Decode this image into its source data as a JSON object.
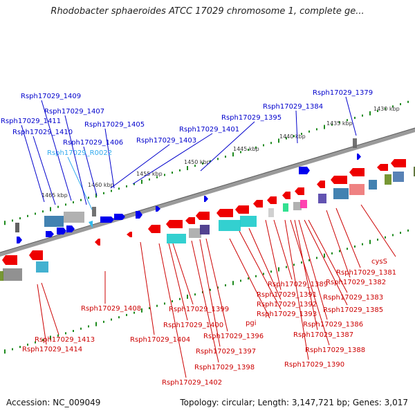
{
  "header": {
    "title": "Rhodobacter sphaeroides ATCC 17029 chromosome 1, complete ge..."
  },
  "footer": {
    "accession": "Accession: NC_009049",
    "summary": "Topology: circular; Length: 3,147,721 bp; Genes: 3,017"
  },
  "scale_labels": [
    "1430 kbp",
    "1435 kbp",
    "1440 kbp",
    "1445 kbp",
    "1450 kbp",
    "1455 kbp",
    "1460 kbp",
    "1465 kbp"
  ],
  "colors": {
    "forward_label": "#0000cc",
    "rna_label": "#33aaee",
    "reverse_label": "#cc0000",
    "backbone": "#777777"
  },
  "forward_genes": [
    {
      "label": "Rsph17029_1379"
    },
    {
      "label": "Rsph17029_1384"
    },
    {
      "label": "Rsph17029_1395"
    },
    {
      "label": "Rsph17029_1401"
    },
    {
      "label": "Rsph17029_1403"
    },
    {
      "label": "Rsph17029_1405"
    },
    {
      "label": "Rsph17029_1406"
    },
    {
      "label": "Rsph17029_R0022"
    },
    {
      "label": "Rsph17029_1407"
    },
    {
      "label": "Rsph17029_1409"
    },
    {
      "label": "Rsph17029_1410"
    },
    {
      "label": "Rsph17029_1411"
    }
  ],
  "reverse_genes": [
    {
      "label": "cysS"
    },
    {
      "label": "Rsph17029_1381"
    },
    {
      "label": "Rsph17029_1382"
    },
    {
      "label": "Rsph17029_1383"
    },
    {
      "label": "Rsph17029_1385"
    },
    {
      "label": "Rsph17029_1386"
    },
    {
      "label": "Rsph17029_1387"
    },
    {
      "label": "Rsph17029_1388"
    },
    {
      "label": "Rsph17029_1389"
    },
    {
      "label": "Rsph17029_1390"
    },
    {
      "label": "Rsph17029_1391"
    },
    {
      "label": "Rsph17029_1392"
    },
    {
      "label": "Rsph17029_1393"
    },
    {
      "label": "pgi"
    },
    {
      "label": "Rsph17029_1396"
    },
    {
      "label": "Rsph17029_1397"
    },
    {
      "label": "Rsph17029_1398"
    },
    {
      "label": "Rsph17029_1399"
    },
    {
      "label": "Rsph17029_1400"
    },
    {
      "label": "Rsph17029_1402"
    },
    {
      "label": "Rsph17029_1404"
    },
    {
      "label": "Rsph17029_1408"
    },
    {
      "label": "Rsph17029_1413"
    },
    {
      "label": "Rsph17029_1414"
    }
  ]
}
